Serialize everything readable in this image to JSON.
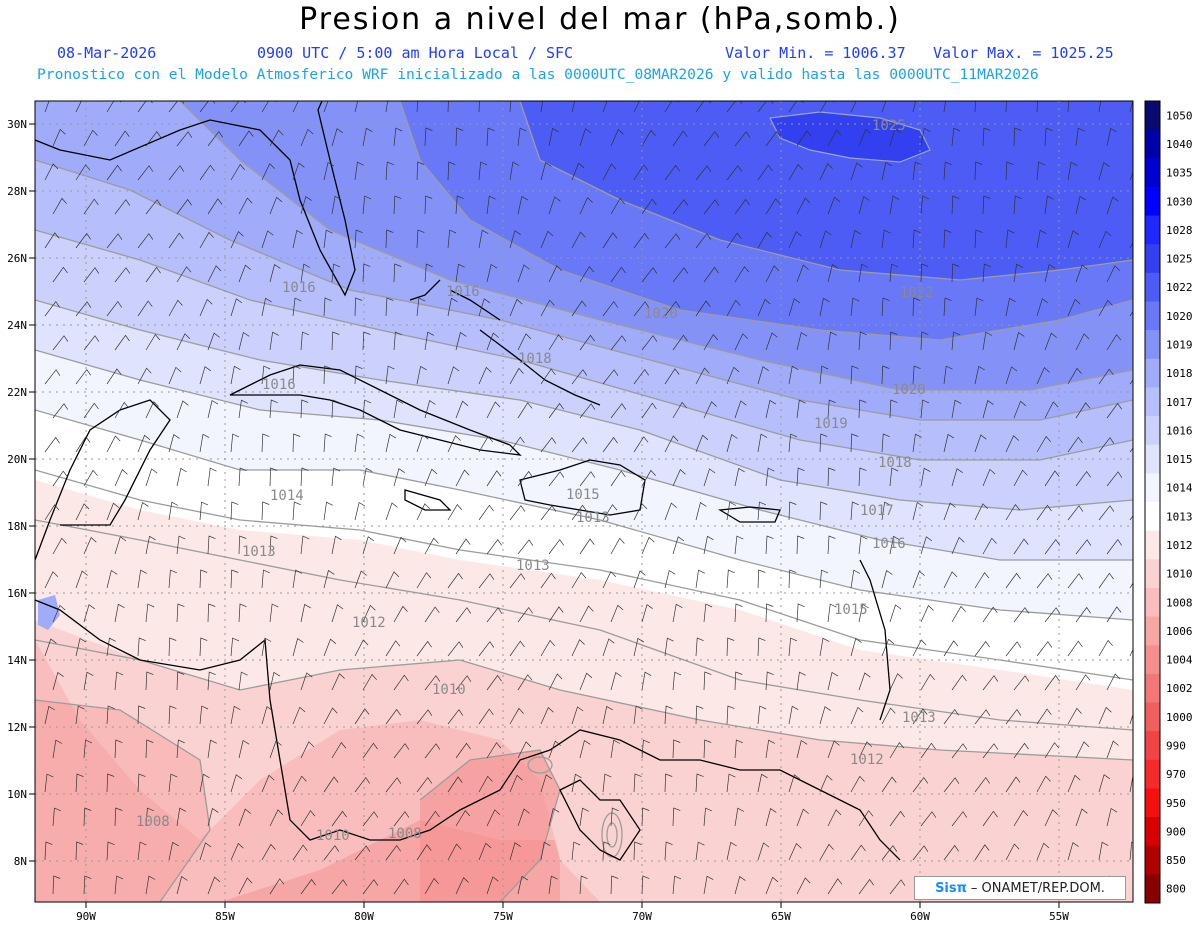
{
  "header": {
    "title": "Presion a nivel del mar (hPa,somb.)",
    "date": "08-Mar-2026",
    "time": "0900 UTC / 5:00 am Hora Local / SFC",
    "min_label": "Valor Min. = 1006.37",
    "max_label": "Valor Max. = 1025.25",
    "model_line": "Pronostico con el Modelo Atmosferico WRF inicializado a las 0000UTC_08MAR2026 y valido hasta las  0000UTC_11MAR2026"
  },
  "lat_labels": [
    "30N",
    "28N",
    "26N",
    "24N",
    "22N",
    "20N",
    "18N",
    "16N",
    "14N",
    "12N",
    "10N",
    "8N"
  ],
  "lon_labels": [
    "90W",
    "85W",
    "80W",
    "75W",
    "70W",
    "65W",
    "60W",
    "55W"
  ],
  "colorbar": {
    "labels": [
      "1050",
      "1040",
      "1035",
      "1030",
      "1028",
      "1025",
      "1022",
      "1020",
      "1019",
      "1018",
      "1017",
      "1016",
      "1015",
      "1014",
      "1013",
      "1012",
      "1010",
      "1008",
      "1006",
      "1004",
      "1002",
      "1000",
      "990",
      "970",
      "950",
      "900",
      "850",
      "800"
    ],
    "colors": [
      "#0a0a6e",
      "#0000a8",
      "#0000d2",
      "#0000ff",
      "#1e28ff",
      "#3240f0",
      "#4c5cf5",
      "#6878f7",
      "#8492f8",
      "#a0abfa",
      "#b6befb",
      "#cbd1fc",
      "#dfe3fd",
      "#f2f4fe",
      "#ffffff",
      "#fde8e8",
      "#fbd2d2",
      "#f9bdbd",
      "#f7a6a6",
      "#f58f8f",
      "#f37777",
      "#f15e5e",
      "#f24444",
      "#f52a2a",
      "#f51010",
      "#d80000",
      "#b00000",
      "#880000"
    ]
  },
  "contour_labels": [
    {
      "text": "1025"
    },
    {
      "text": "1022"
    },
    {
      "text": "1020"
    },
    {
      "text": "1020"
    },
    {
      "text": "1019"
    },
    {
      "text": "1018"
    },
    {
      "text": "1018"
    },
    {
      "text": "1017"
    },
    {
      "text": "1016"
    },
    {
      "text": "1016"
    },
    {
      "text": "1016"
    },
    {
      "text": "1015"
    },
    {
      "text": "1015"
    },
    {
      "text": "1014"
    },
    {
      "text": "1013"
    },
    {
      "text": "1013"
    },
    {
      "text": "1013"
    },
    {
      "text": "1013"
    },
    {
      "text": "1012"
    },
    {
      "text": "1012"
    },
    {
      "text": "1010"
    },
    {
      "text": "1010"
    },
    {
      "text": "1008"
    },
    {
      "text": "1008"
    },
    {
      "text": "1016"
    }
  ],
  "credit": {
    "sis": "Sisπ",
    "rest": "– ONAMET/REP.DOM."
  }
}
